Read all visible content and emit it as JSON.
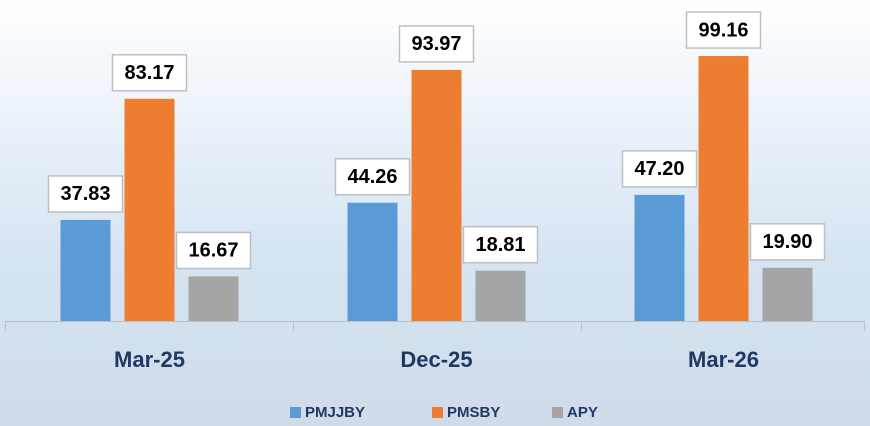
{
  "chart_data": {
    "type": "bar",
    "categories": [
      "Mar-25",
      "Dec-25",
      "Mar-26"
    ],
    "series": [
      {
        "name": "PMJJBY",
        "color": "#5b9bd5",
        "values": [
          37.83,
          44.26,
          47.2
        ],
        "value_labels": [
          "37.83",
          "44.26",
          "47.20"
        ]
      },
      {
        "name": "PMSBY",
        "color": "#ed7d31",
        "values": [
          83.17,
          93.97,
          99.16
        ],
        "value_labels": [
          "83.17",
          "93.97",
          "99.16"
        ]
      },
      {
        "name": "APY",
        "color": "#a5a5a5",
        "values": [
          16.67,
          18.81,
          19.9
        ],
        "value_labels": [
          "16.67",
          "18.81",
          "19.90"
        ]
      }
    ]
  }
}
